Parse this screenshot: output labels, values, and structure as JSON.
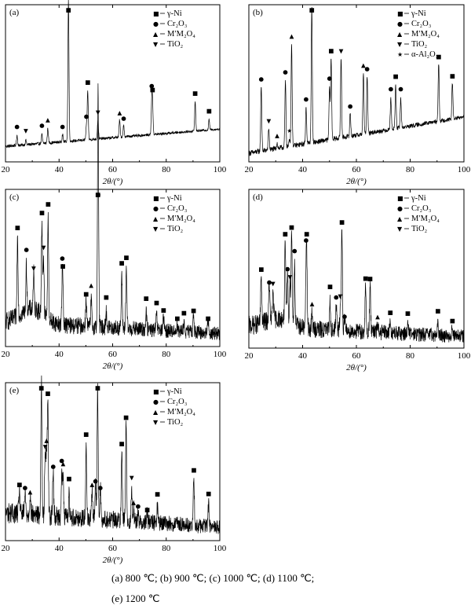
{
  "legend_symbols": {
    "gamma_ni": "■",
    "cr2o3": "●",
    "spinel": "▲",
    "tio2": "▼",
    "al2o3": "★"
  },
  "legend_labels": {
    "gamma_ni": "γ-Ni",
    "cr2o3": "Cr₂O₃",
    "spinel": "M′M₂O₄",
    "tio2": "TiO₂",
    "al2o3": "α-Al₂O₃"
  },
  "xlabel": "2θ/(°)",
  "caption": {
    "line1": "(a) 800 ℃; (b) 900 ℃; (c) 1000 ℃;   (d) 1100 ℃;",
    "line2": "(e) 1200 ℃"
  },
  "chart_data": [
    {
      "type": "line",
      "panel": "(a)",
      "xlim": [
        20,
        100
      ],
      "xticks": [
        20,
        40,
        60,
        80,
        100
      ],
      "xlabel": "2θ/(°)",
      "background": {
        "start": 0.08,
        "end": 0.2,
        "noise": 0.02
      },
      "legend": [
        "gamma_ni",
        "cr2o3",
        "spinel",
        "tio2"
      ],
      "peaks": [
        {
          "x": 24.3,
          "h": 0.07,
          "m": "cr2o3"
        },
        {
          "x": 27.6,
          "h": 0.03,
          "m": "tio2"
        },
        {
          "x": 33.6,
          "h": 0.06,
          "m": "cr2o3"
        },
        {
          "x": 35.8,
          "h": 0.1,
          "m": "spinel"
        },
        {
          "x": 41.3,
          "h": 0.05,
          "m": "cr2o3"
        },
        {
          "x": 43.5,
          "h": 0.97,
          "m": "gamma_ni"
        },
        {
          "x": 50.2,
          "h": 0.09,
          "m": "cr2o3"
        },
        {
          "x": 50.7,
          "h": 0.33,
          "m": "gamma_ni"
        },
        {
          "x": 54.5,
          "h": 0.13,
          "m": "tio2"
        },
        {
          "x": 62.6,
          "h": 0.12,
          "m": "spinel"
        },
        {
          "x": 64.1,
          "h": 0.08,
          "m": "cr2o3"
        },
        {
          "x": 74.6,
          "h": 0.22,
          "m": "cr2o3"
        },
        {
          "x": 74.9,
          "h": 0.18,
          "m": "gamma_ni"
        },
        {
          "x": 90.8,
          "h": 0.2,
          "m": "gamma_ni"
        },
        {
          "x": 96.0,
          "h": 0.07,
          "m": "gamma_ni"
        }
      ]
    },
    {
      "type": "line",
      "panel": "(b)",
      "xlim": [
        20,
        100
      ],
      "xticks": [
        20,
        40,
        60,
        80,
        100
      ],
      "xlabel": "2θ/(°)",
      "background": {
        "start": 0.03,
        "end": 0.28,
        "noise": 0.035
      },
      "legend": [
        "gamma_ni",
        "cr2o3",
        "spinel",
        "tio2",
        "al2o3"
      ],
      "peaks": [
        {
          "x": 24.6,
          "h": 0.45,
          "m": "cr2o3"
        },
        {
          "x": 27.4,
          "h": 0.15,
          "m": "tio2"
        },
        {
          "x": 30.5,
          "h": 0.04,
          "m": "spinel"
        },
        {
          "x": 33.6,
          "h": 0.45,
          "m": "cr2o3"
        },
        {
          "x": 35.1,
          "h": 0.05,
          "m": "al2o3"
        },
        {
          "x": 35.9,
          "h": 0.7,
          "m": "spinel"
        },
        {
          "x": 41.3,
          "h": 0.25,
          "m": "cr2o3"
        },
        {
          "x": 43.4,
          "h": 0.92,
          "m": "gamma_ni"
        },
        {
          "x": 50.0,
          "h": 0.35,
          "m": "cr2o3"
        },
        {
          "x": 50.6,
          "h": 0.55,
          "m": "gamma_ni"
        },
        {
          "x": 54.3,
          "h": 0.55,
          "m": "tio2"
        },
        {
          "x": 57.7,
          "h": 0.16,
          "m": "cr2o3"
        },
        {
          "x": 62.6,
          "h": 0.42,
          "m": "spinel"
        },
        {
          "x": 64.0,
          "h": 0.4,
          "m": "cr2o3"
        },
        {
          "x": 72.8,
          "h": 0.22,
          "m": "cr2o3"
        },
        {
          "x": 74.6,
          "h": 0.3,
          "m": "gamma_ni"
        },
        {
          "x": 76.5,
          "h": 0.2,
          "m": "cr2o3"
        },
        {
          "x": 90.6,
          "h": 0.4,
          "m": "gamma_ni"
        },
        {
          "x": 95.7,
          "h": 0.25,
          "m": "gamma_ni"
        }
      ]
    },
    {
      "type": "line",
      "panel": "(c)",
      "xlim": [
        20,
        100
      ],
      "xticks": [
        20,
        40,
        60,
        80,
        100
      ],
      "xlabel": "2θ/(°)",
      "background": {
        "start": 0.12,
        "end": 0.05,
        "noise": 0.12,
        "hump": {
          "x": 30,
          "w": 6,
          "h": 0.1
        }
      },
      "legend": [
        "gamma_ni",
        "cr2o3",
        "spinel",
        "tio2"
      ],
      "peaks": [
        {
          "x": 24.5,
          "h": 0.55,
          "m": "gamma_ni"
        },
        {
          "x": 27.8,
          "h": 0.3,
          "m": "cr2o3"
        },
        {
          "x": 30.5,
          "h": 0.25,
          "m": "tio2"
        },
        {
          "x": 33.6,
          "h": 0.62,
          "m": "gamma_ni"
        },
        {
          "x": 34.2,
          "h": 0.38,
          "m": "tio2"
        },
        {
          "x": 35.9,
          "h": 0.68,
          "m": "gamma_ni"
        },
        {
          "x": 41.2,
          "h": 0.25,
          "m": "cr2o3"
        },
        {
          "x": 41.4,
          "h": 0.22,
          "m": "gamma_ni"
        },
        {
          "x": 50.1,
          "h": 0.2,
          "m": "gamma_ni"
        },
        {
          "x": 52.0,
          "h": 0.18,
          "m": "spinel"
        },
        {
          "x": 54.5,
          "h": 0.82,
          "m": "gamma_ni"
        },
        {
          "x": 54.6,
          "h": 0.85,
          "m": "cr2o3"
        },
        {
          "x": 57.6,
          "h": 0.1,
          "m": "gamma_ni"
        },
        {
          "x": 63.4,
          "h": 0.35,
          "m": "gamma_ni"
        },
        {
          "x": 65.1,
          "h": 0.42,
          "m": "gamma_ni"
        },
        {
          "x": 72.5,
          "h": 0.12,
          "m": "gamma_ni"
        },
        {
          "x": 76.4,
          "h": 0.1,
          "m": "gamma_ni"
        },
        {
          "x": 79.0,
          "h": 0.08,
          "m": "gamma_ni"
        },
        {
          "x": 84.1,
          "h": 0.05,
          "m": "gamma_ni"
        },
        {
          "x": 86.6,
          "h": 0.06,
          "m": "gamma_ni"
        },
        {
          "x": 90.2,
          "h": 0.12,
          "m": "gamma_ni"
        },
        {
          "x": 95.6,
          "h": 0.09,
          "m": "gamma_ni"
        }
      ]
    },
    {
      "type": "line",
      "panel": "(d)",
      "xlim": [
        20,
        100
      ],
      "xticks": [
        20,
        40,
        60,
        80,
        100
      ],
      "xlabel": "2θ/(°)",
      "background": {
        "start": 0.1,
        "end": 0.04,
        "noise": 0.12,
        "hump": {
          "x": 31,
          "w": 7,
          "h": 0.06
        }
      },
      "legend": [
        "gamma_ni",
        "cr2o3",
        "spinel",
        "tio2"
      ],
      "peaks": [
        {
          "x": 24.6,
          "h": 0.33,
          "m": "gamma_ni"
        },
        {
          "x": 27.6,
          "h": 0.26,
          "m": "cr2o3"
        },
        {
          "x": 29.0,
          "h": 0.2,
          "m": "tio2"
        },
        {
          "x": 33.5,
          "h": 0.5,
          "m": "gamma_ni"
        },
        {
          "x": 34.4,
          "h": 0.3,
          "m": "cr2o3"
        },
        {
          "x": 35.3,
          "h": 0.25,
          "m": "tio2"
        },
        {
          "x": 35.9,
          "h": 0.62,
          "m": "gamma_ni"
        },
        {
          "x": 37.0,
          "h": 0.4,
          "m": "cr2o3"
        },
        {
          "x": 41.3,
          "h": 0.27,
          "m": "cr2o3"
        },
        {
          "x": 41.5,
          "h": 0.42,
          "m": "gamma_ni"
        },
        {
          "x": 43.5,
          "h": 0.1,
          "m": "spinel"
        },
        {
          "x": 50.2,
          "h": 0.2,
          "m": "gamma_ni"
        },
        {
          "x": 52.5,
          "h": 0.18,
          "m": "cr2o3"
        },
        {
          "x": 54.0,
          "h": 0.16,
          "m": "tio2"
        },
        {
          "x": 54.6,
          "h": 0.7,
          "m": "gamma_ni"
        },
        {
          "x": 55.6,
          "h": 0.1,
          "m": "cr2o3"
        },
        {
          "x": 63.4,
          "h": 0.3,
          "m": "gamma_ni"
        },
        {
          "x": 65.1,
          "h": 0.34,
          "m": "gamma_ni"
        },
        {
          "x": 67.9,
          "h": 0.06,
          "m": "spinel"
        },
        {
          "x": 72.6,
          "h": 0.08,
          "m": "gamma_ni"
        },
        {
          "x": 79.1,
          "h": 0.08,
          "m": "gamma_ni"
        },
        {
          "x": 90.3,
          "h": 0.07,
          "m": "gamma_ni"
        },
        {
          "x": 95.7,
          "h": 0.06,
          "m": "gamma_ni"
        }
      ]
    },
    {
      "type": "line",
      "panel": "(e)",
      "xlim": [
        20,
        100
      ],
      "xticks": [
        20,
        40,
        60,
        80,
        100
      ],
      "xlabel": "2θ/(°)",
      "background": {
        "start": 0.14,
        "end": 0.05,
        "noise": 0.13
      },
      "legend": [
        "gamma_ni",
        "cr2o3",
        "spinel",
        "tio2"
      ],
      "peaks": [
        {
          "x": 25.2,
          "h": 0.17,
          "m": "gamma_ni"
        },
        {
          "x": 27.3,
          "h": 0.14,
          "m": "cr2o3"
        },
        {
          "x": 29.2,
          "h": 0.14,
          "m": "spinel"
        },
        {
          "x": 33.4,
          "h": 0.92,
          "m": "gamma_ni"
        },
        {
          "x": 34.8,
          "h": 0.45,
          "m": "tio2"
        },
        {
          "x": 35.3,
          "h": 0.42,
          "m": "spinel"
        },
        {
          "x": 35.8,
          "h": 0.77,
          "m": "gamma_ni"
        },
        {
          "x": 37.8,
          "h": 0.3,
          "m": "cr2o3"
        },
        {
          "x": 41.0,
          "h": 0.28,
          "m": "cr2o3"
        },
        {
          "x": 41.5,
          "h": 0.25,
          "m": "spinel"
        },
        {
          "x": 43.7,
          "h": 0.15,
          "m": "gamma_ni"
        },
        {
          "x": 50.1,
          "h": 0.5,
          "m": "gamma_ni"
        },
        {
          "x": 52.3,
          "h": 0.18,
          "m": "spinel"
        },
        {
          "x": 53.6,
          "h": 0.26,
          "m": "cr2o3"
        },
        {
          "x": 54.4,
          "h": 0.88,
          "m": "gamma_ni"
        },
        {
          "x": 55.4,
          "h": 0.22,
          "m": "cr2o3"
        },
        {
          "x": 63.4,
          "h": 0.5,
          "m": "gamma_ni"
        },
        {
          "x": 65.0,
          "h": 0.66,
          "m": "gamma_ni"
        },
        {
          "x": 67.1,
          "h": 0.2,
          "m": "tio2"
        },
        {
          "x": 67.8,
          "h": 0.1,
          "m": "spinel"
        },
        {
          "x": 69.5,
          "h": 0.06,
          "m": "cr2o3"
        },
        {
          "x": 72.9,
          "h": 0.07,
          "m": "gamma_ni"
        },
        {
          "x": 76.7,
          "h": 0.11,
          "m": "gamma_ni"
        },
        {
          "x": 90.3,
          "h": 0.33,
          "m": "gamma_ni"
        },
        {
          "x": 95.8,
          "h": 0.16,
          "m": "gamma_ni"
        }
      ]
    }
  ]
}
